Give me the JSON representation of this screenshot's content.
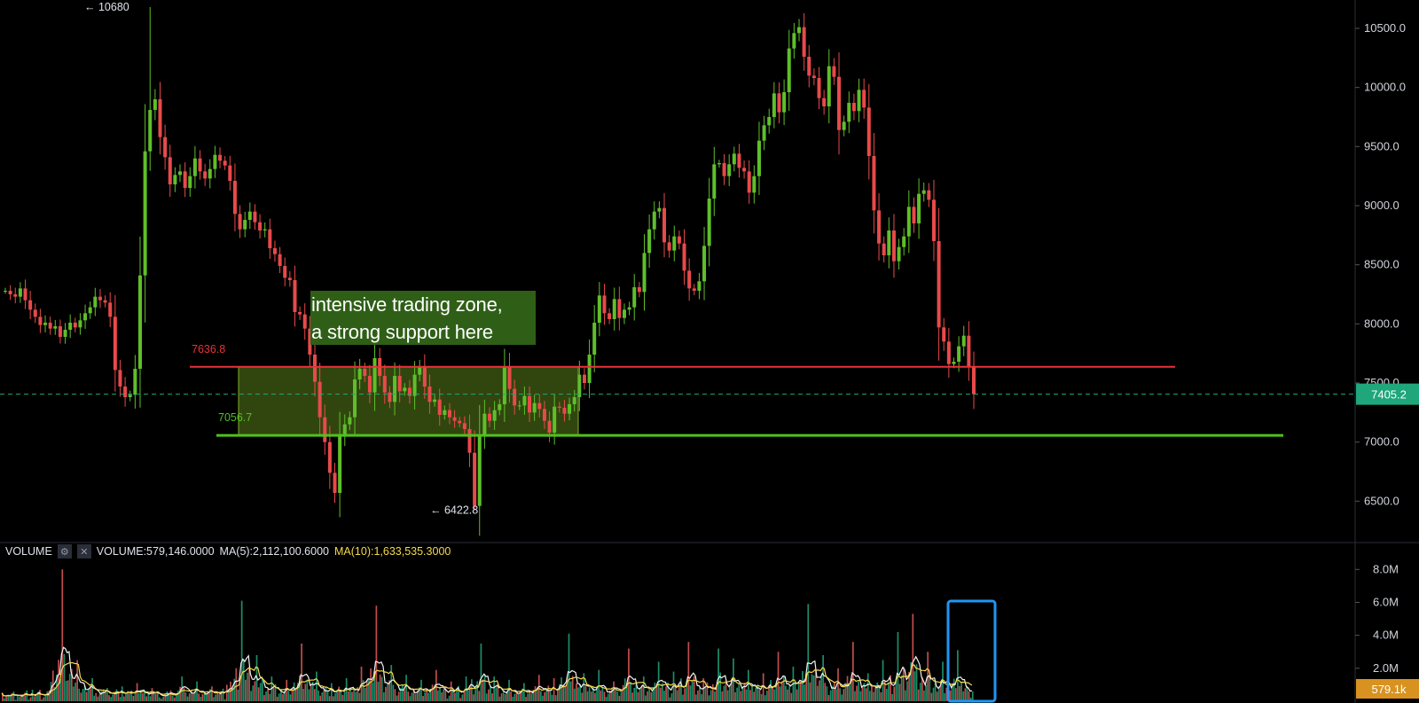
{
  "chart_data": [
    {
      "type": "candlestick",
      "y_axis": {
        "ticks": [
          "10500.0",
          "10000.0",
          "9500.0",
          "9000.0",
          "8500.0",
          "8000.0",
          "7500.0",
          "7000.0",
          "6500.0"
        ],
        "range": [
          6150,
          10740
        ]
      },
      "series": [
        {
          "values": [
            8280,
            8250,
            8230,
            8300,
            8200,
            8120,
            8060,
            7990,
            8010,
            7960,
            7980,
            7890,
            7950,
            8010,
            7970,
            8030,
            8090,
            8140,
            8230,
            8200,
            8180,
            8060,
            7610,
            7470,
            7380,
            7400,
            7620,
            8410,
            9460,
            9810,
            9900,
            9580,
            9410,
            9180,
            9260,
            9290,
            9150,
            9250,
            9400,
            9290,
            9230,
            9310,
            9430,
            9380,
            9340,
            9210,
            8930,
            8800,
            8880,
            8950,
            8860,
            8790,
            8800,
            8640,
            8590,
            8490,
            8390,
            8370,
            8100,
            8080,
            7960,
            7740,
            7510,
            7210,
            7000,
            6740,
            6570,
            7050,
            7150,
            7210,
            7530,
            7620,
            7560,
            7420,
            7710,
            7560,
            7420,
            7340,
            7560,
            7430,
            7460,
            7390,
            7570,
            7640,
            7470,
            7340,
            7360,
            7230,
            7270,
            7210,
            7180,
            7160,
            7110,
            6910,
            6460,
            7060,
            7240,
            7180,
            7270,
            7320,
            7640,
            7450,
            7310,
            7310,
            7390,
            7250,
            7330,
            7280,
            7180,
            7080,
            7300,
            7290,
            7240,
            7320,
            7380,
            7570,
            7500,
            7740,
            8010,
            8240,
            8090,
            8040,
            8210,
            8050,
            8120,
            8140,
            8310,
            8270,
            8600,
            8800,
            8950,
            8980,
            8690,
            8620,
            8740,
            8680,
            8450,
            8300,
            8280,
            8360,
            8660,
            9060,
            9350,
            9360,
            9250,
            9350,
            9440,
            9320,
            9290,
            9110,
            9250,
            9550,
            9680,
            9750,
            9950,
            9790,
            9960,
            10330,
            10460,
            10510,
            10260,
            10100,
            10080,
            9910,
            9840,
            10180,
            10090,
            9640,
            9710,
            9870,
            9800,
            9980,
            9830,
            9420,
            8960,
            8680,
            8580,
            8790,
            8530,
            8650,
            8740,
            8990,
            8850,
            9100,
            9130,
            9050,
            8700,
            7970,
            7850,
            7660,
            7680,
            7810,
            7900,
            7640,
            7405
          ]
        }
      ],
      "x_range": [
        0,
        1100
      ],
      "annotations": {
        "max_price_label": "10680",
        "min_price_label": "6422.8",
        "resistance_label": "7636.8",
        "support_label": "7056.7",
        "current_price": "7405.2"
      }
    },
    {
      "type": "bar",
      "name": "VOLUME",
      "y_axis": {
        "ticks": [
          "8.0M",
          "6.0M",
          "4.0M",
          "2.0M"
        ],
        "range": [
          0,
          9.2
        ],
        "unit": "M"
      },
      "values_sample_M": [
        0.5,
        0.4,
        0.7,
        0.6,
        8.0,
        2.5,
        1.4,
        0.8,
        0.9,
        1.1,
        0.8,
        0.6,
        1.5,
        1.2,
        0.9,
        1.0,
        6.1,
        2.8,
        1.5,
        1.3,
        3.5,
        1.8,
        1.1,
        1.4,
        2.1,
        5.8,
        2.2,
        1.6,
        1.3,
        1.9,
        1.2,
        1.5,
        3.5,
        1.5,
        1.3,
        1.1,
        1.6,
        1.4,
        4.1,
        1.7,
        1.9,
        1.2,
        3.2,
        1.5,
        2.4,
        1.8,
        3.6,
        1.4,
        3.2,
        2.6,
        1.9,
        1.7,
        3.0,
        2.1,
        5.9,
        2.8,
        2.0,
        3.6,
        1.7,
        2.5,
        4.2,
        5.3,
        3.0,
        2.4,
        3.1,
        0.6
      ],
      "current_label": "579.1k"
    }
  ],
  "annotation_box_text": [
    "intensive trading zone,",
    "a strong support here"
  ],
  "volume_legend": {
    "name": "VOLUME",
    "volume": "VOLUME:579,146.0000",
    "ma5": "MA(5):2,112,100.6000",
    "ma10": "MA(10):1,633,535.3000"
  },
  "colors": {
    "background": "#000000",
    "up": "#5fbf2a",
    "down": "#e84a4a",
    "resistance": "#e8323a",
    "support": "#4fc21e",
    "zone": "#5a7f1c",
    "current_price": "#1fa67a",
    "volume_current_tag": "#d9921f",
    "highlight_box": "#2196f3",
    "ma5": "#f2f2f2",
    "ma10": "#f5d94a"
  }
}
